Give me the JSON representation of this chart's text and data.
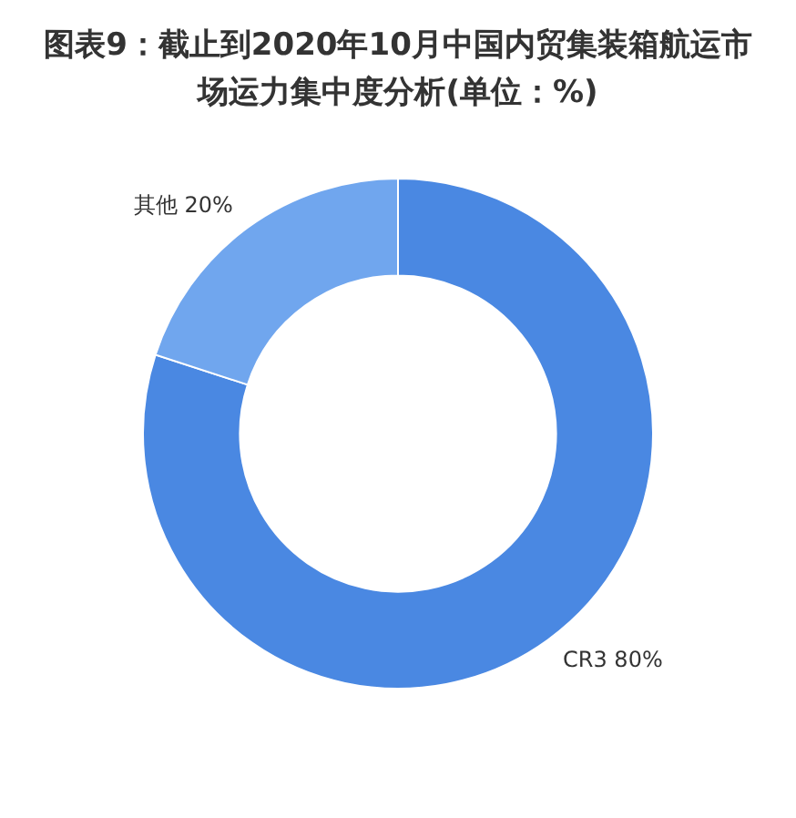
{
  "chart_data": {
    "type": "donut",
    "title": "图表9：截止到2020年10月中国内贸集装箱航运市场运力集中度分析(单位：%)",
    "categories": [
      "CR3",
      "其他"
    ],
    "values": [
      80,
      20
    ],
    "colors": [
      "#4a88e2",
      "#70a6ee"
    ],
    "value_labels": [
      "80%",
      "20%"
    ],
    "legend": false
  }
}
